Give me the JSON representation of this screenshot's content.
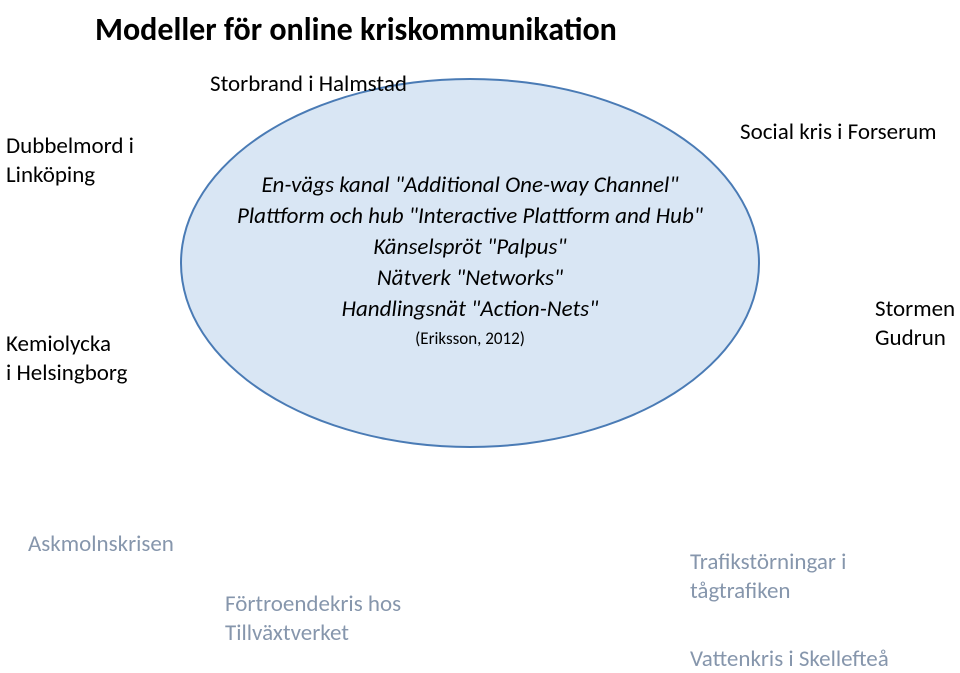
{
  "title": "Modeller för online kriskommunikation",
  "subtitle": "Storbrand i Halmstad",
  "ellipse": {
    "background": "#d9e6f4",
    "border_color": "#4a7bb5",
    "border_width": 2,
    "lines": [
      "En-vägs kanal \"Additional One-way Channel\"",
      "Plattform och hub \"Interactive Plattform and Hub\"",
      "Känselspröt \"Palpus\"",
      "Nätverk \"Networks\"",
      "Handlingsnät \"Action-Nets\""
    ],
    "cite": "(Eriksson, 2012)"
  },
  "outer_labels": {
    "top_left": "Dubbelmord i\nLinköping",
    "mid_left": "Kemiolycka\ni Helsingborg",
    "top_right": "Social kris i Forserum",
    "mid_right": "Stormen\nGudrun"
  },
  "bottom_labels": {
    "left": "Askmolnskrisen",
    "center": "Förtroendekris hos\nTillväxtverket",
    "right1": "Trafikstörningar i\ntågtrafiken",
    "right2": "Vattenkris i Skellefteå"
  },
  "colors": {
    "title": "#000000",
    "outer_text": "#000000",
    "grey_text": "#8696ac",
    "background": "#ffffff"
  },
  "fonts": {
    "title_size": 32,
    "body_size": 23,
    "cite_size": 17,
    "family": "Calibri"
  }
}
